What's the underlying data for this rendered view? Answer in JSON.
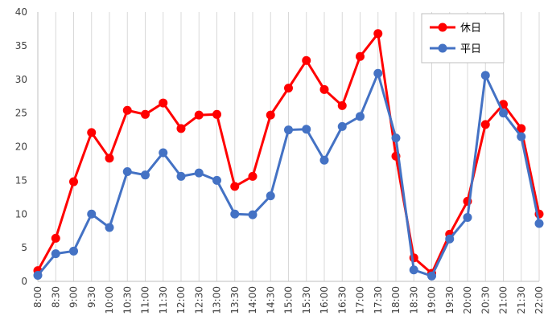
{
  "chart_data": {
    "type": "line",
    "title": "",
    "xlabel": "",
    "ylabel": "",
    "ylim": [
      0,
      40
    ],
    "yticks": [
      0,
      5,
      10,
      15,
      20,
      25,
      30,
      35,
      40
    ],
    "grid": "vertical",
    "legend_position": "top-right",
    "categories": [
      "8:00",
      "8:30",
      "9:00",
      "9:30",
      "10:00",
      "10:30",
      "11:00",
      "11:30",
      "12:00",
      "12:30",
      "13:00",
      "13:30",
      "14:00",
      "14:30",
      "15:00",
      "15:30",
      "16:00",
      "16:30",
      "17:00",
      "17:30",
      "18:00",
      "18:30",
      "19:00",
      "19:30",
      "20:00",
      "20:30",
      "21:00",
      "21:30",
      "22:00"
    ],
    "series": [
      {
        "name": "休日",
        "color": "#ff0000",
        "values": [
          1.6,
          6.4,
          14.8,
          22.1,
          18.3,
          25.4,
          24.8,
          26.5,
          22.7,
          24.7,
          24.8,
          14.1,
          15.6,
          24.7,
          28.7,
          32.8,
          28.5,
          26.1,
          33.4,
          36.8,
          18.6,
          3.5,
          1.2,
          7.0,
          11.9,
          23.3,
          26.3,
          22.7,
          10.0
        ]
      },
      {
        "name": "平日",
        "color": "#4472c4",
        "values": [
          0.9,
          4.1,
          4.5,
          10.0,
          8.0,
          16.3,
          15.8,
          19.1,
          15.6,
          16.1,
          15.0,
          10.0,
          9.9,
          12.7,
          22.5,
          22.6,
          18.0,
          23.0,
          24.5,
          30.9,
          21.3,
          1.7,
          0.8,
          6.3,
          9.5,
          30.6,
          25.0,
          21.5,
          8.6
        ]
      }
    ]
  }
}
